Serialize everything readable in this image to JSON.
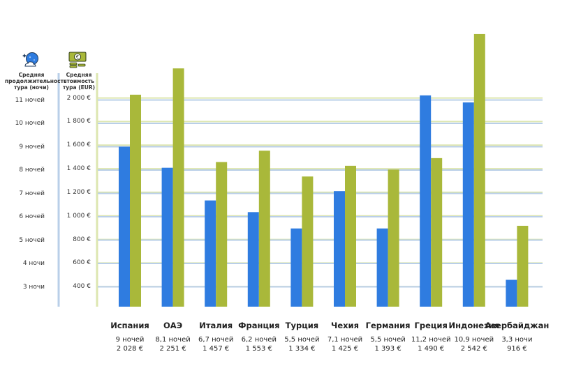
{
  "headers": {
    "nights_line1": "Средняя",
    "nights_line2": "продолжительность",
    "nights_line3": "тура (ночи)",
    "cost_line1": "Средняя",
    "cost_line2": "стоимость",
    "cost_line3": "тура (EUR)"
  },
  "icons": {
    "nights": "globe-night-icon",
    "cost": "money-euro-icon"
  },
  "colors": {
    "nights": "#2f7ce0",
    "cost": "#a9b83a",
    "grid_nights": "#b9cfe8",
    "grid_cost": "#dde6b0",
    "axis_nights": "#b9cfe8",
    "axis_cost": "#dde6b0"
  },
  "chart_data": {
    "type": "bar",
    "title": "",
    "categories": [
      "Испания",
      "ОАЭ",
      "Италия",
      "Франция",
      "Турция",
      "Чехия",
      "Германия",
      "Греция",
      "Индонезия",
      "Азербайджан"
    ],
    "series": [
      {
        "name": "Средняя продолжительность тура (ночи)",
        "axis": "left",
        "values": [
          9,
          8.1,
          6.7,
          6.2,
          5.5,
          7.1,
          5.5,
          11.2,
          10.9,
          3.3
        ],
        "value_labels": [
          "9 ночей",
          "8,1 ночей",
          "6,7 ночей",
          "6,2 ночей",
          "5,5 ночей",
          "7,1 ночей",
          "5,5 ночей",
          "11,2 ночей",
          "10,9 ночей",
          "3,3 ночи"
        ]
      },
      {
        "name": "Средняя стоимость тура (EUR)",
        "axis": "right",
        "values": [
          2028,
          2251,
          1457,
          1553,
          1334,
          1425,
          1393,
          1490,
          2542,
          916
        ],
        "value_labels": [
          "2 028 €",
          "2 251 €",
          "1 457 €",
          "1 553 €",
          "1 334 €",
          "1 425 €",
          "1 393 €",
          "1 490 €",
          "2 542 €",
          "916 €"
        ]
      }
    ],
    "y_left": {
      "ticks": [
        3,
        4,
        5,
        6,
        7,
        8,
        9,
        10,
        11
      ],
      "tick_labels": [
        "3 ночи",
        "4 ночи",
        "5 ночей",
        "6 ночей",
        "7 ночей",
        "8 ночей",
        "9 ночей",
        "10 ночей",
        "11 ночей"
      ],
      "range": [
        2.15,
        12.3
      ]
    },
    "y_right": {
      "ticks": [
        400,
        600,
        800,
        1000,
        1200,
        1400,
        1600,
        1800,
        2000
      ],
      "tick_labels": [
        "400 €",
        "600 €",
        "800 €",
        "1 000 €",
        "1 200 €",
        "1 400 €",
        "1 600 €",
        "1 800 €",
        "2 000 €"
      ],
      "range": [
        230,
        2240
      ]
    },
    "grid": true
  }
}
